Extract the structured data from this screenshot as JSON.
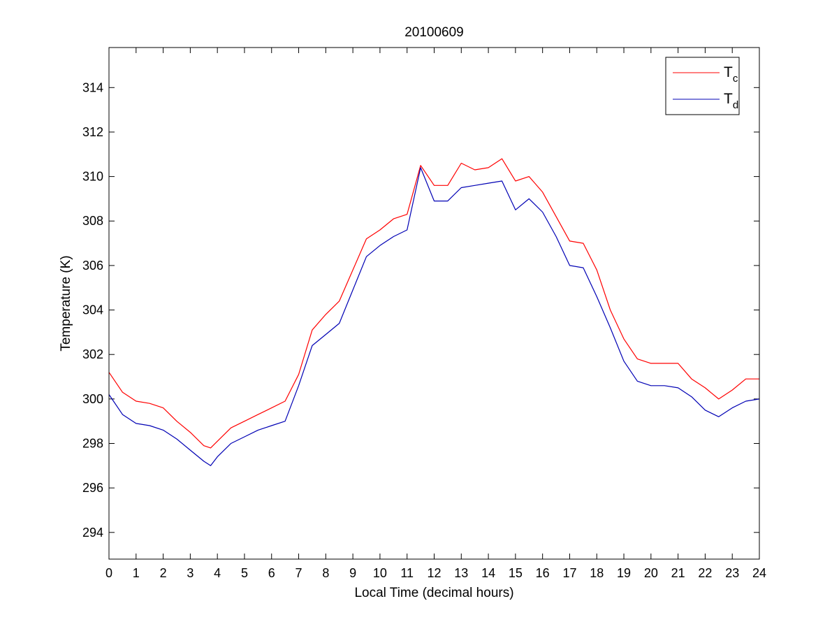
{
  "chart_data": {
    "type": "line",
    "title": "20100609",
    "xlabel": "Local Time (decimal hours)",
    "ylabel": "Temperature (K)",
    "xlim": [
      0,
      24
    ],
    "ylim": [
      292.8,
      315.8
    ],
    "xticks": [
      0,
      1,
      2,
      3,
      4,
      5,
      6,
      7,
      8,
      9,
      10,
      11,
      12,
      13,
      14,
      15,
      16,
      17,
      18,
      19,
      20,
      21,
      22,
      23,
      24
    ],
    "xtick_labels": [
      "0",
      "1",
      "2",
      "3",
      "4",
      "5",
      "6",
      "7",
      "8",
      "9",
      "10",
      "11",
      "12",
      "13",
      "14",
      "15",
      "16",
      "17",
      "18",
      "19",
      "20",
      "21",
      "22",
      "23",
      "24"
    ],
    "yticks": [
      294,
      296,
      298,
      300,
      302,
      304,
      306,
      308,
      310,
      312,
      314
    ],
    "ytick_labels": [
      "294",
      "296",
      "298",
      "300",
      "302",
      "304",
      "306",
      "308",
      "310",
      "312",
      "314"
    ],
    "grid": false,
    "legend_position": "top-right",
    "series": [
      {
        "name": "T",
        "subscript": "c",
        "color": "#ff0000",
        "x": [
          0,
          0.5,
          1,
          1.5,
          2,
          2.5,
          3,
          3.5,
          3.75,
          4,
          4.5,
          5,
          5.5,
          6,
          6.5,
          7,
          7.5,
          8,
          8.5,
          9,
          9.5,
          10,
          10.5,
          11,
          11.5,
          12,
          12.5,
          13,
          13.5,
          14,
          14.5,
          15,
          15.5,
          16,
          16.5,
          17,
          17.5,
          18,
          18.5,
          19,
          19.5,
          20,
          20.5,
          21,
          21.5,
          22,
          22.5,
          23,
          23.5,
          24
        ],
        "y": [
          301.2,
          300.3,
          299.9,
          299.8,
          299.6,
          299.0,
          298.5,
          297.9,
          297.8,
          298.1,
          298.7,
          299.0,
          299.3,
          299.6,
          299.9,
          301.1,
          303.1,
          303.8,
          304.4,
          305.8,
          307.2,
          307.6,
          308.1,
          308.3,
          310.5,
          309.6,
          309.6,
          310.6,
          310.3,
          310.4,
          310.8,
          309.8,
          310.0,
          309.3,
          308.2,
          307.1,
          307.0,
          305.8,
          304.0,
          302.7,
          301.8,
          301.6,
          301.6,
          301.6,
          300.9,
          300.5,
          300.0,
          300.4,
          300.9,
          300.9
        ]
      },
      {
        "name": "T",
        "subscript": "d",
        "color": "#0000b4",
        "x": [
          0,
          0.5,
          1,
          1.5,
          2,
          2.5,
          3,
          3.5,
          3.75,
          4,
          4.5,
          5,
          5.5,
          6,
          6.5,
          7,
          7.5,
          8,
          8.5,
          9,
          9.5,
          10,
          10.5,
          11,
          11.5,
          12,
          12.5,
          13,
          13.5,
          14,
          14.5,
          15,
          15.5,
          16,
          16.5,
          17,
          17.5,
          18,
          18.5,
          19,
          19.5,
          20,
          20.5,
          21,
          21.5,
          22,
          22.5,
          23,
          23.5,
          24
        ],
        "y": [
          300.2,
          299.3,
          298.9,
          298.8,
          298.6,
          298.2,
          297.7,
          297.2,
          297.0,
          297.4,
          298.0,
          298.3,
          298.6,
          298.8,
          299.0,
          300.6,
          302.4,
          302.9,
          303.4,
          304.9,
          306.4,
          306.9,
          307.3,
          307.6,
          310.4,
          308.9,
          308.9,
          309.5,
          309.6,
          309.7,
          309.8,
          308.5,
          309.0,
          308.4,
          307.3,
          306.0,
          305.9,
          304.6,
          303.2,
          301.7,
          300.8,
          300.6,
          300.6,
          300.5,
          300.1,
          299.5,
          299.2,
          299.6,
          299.9,
          300.0
        ]
      }
    ]
  }
}
